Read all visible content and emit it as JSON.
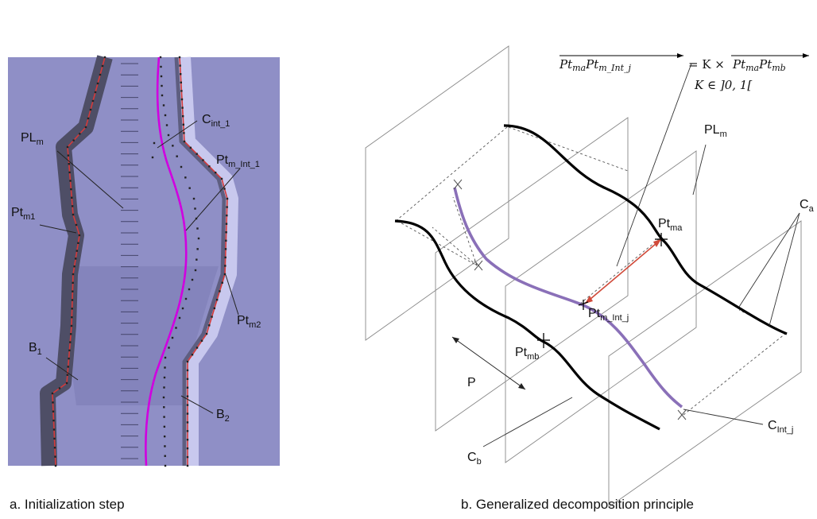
{
  "panel_a": {
    "caption": "a. Initialization step",
    "labels": {
      "c_int_1": {
        "main": "C",
        "sub": "int_1"
      },
      "pl_m": {
        "main": "PL",
        "sub": "m"
      },
      "pt_m_int_1": {
        "main": "Pt",
        "sub": "m_Int_1"
      },
      "pt_m1": {
        "main": "Pt",
        "sub": "m1"
      },
      "pt_m2": {
        "main": "Pt",
        "sub": "m2"
      },
      "b1": {
        "main": "B",
        "sub": "1"
      },
      "b2": {
        "main": "B",
        "sub": "2"
      }
    },
    "colors": {
      "background": "#8f8fc6",
      "shadow": "#4e4e66",
      "border_line": "#d43a3a",
      "curve": "#d000e0",
      "highlight": "#c8c8ee"
    }
  },
  "panel_b": {
    "caption": "b. Generalized decomposition principle",
    "equation": "Pt_ma Pt_m_Int_j = K × Pt_ma Pt_mb",
    "equation_lhs_1": "Pt",
    "equation_lhs_1_sub": "ma",
    "equation_lhs_2": "Pt",
    "equation_lhs_2_sub": "m_Int_j",
    "equation_op": "= K ×",
    "equation_rhs_1": "Pt",
    "equation_rhs_1_sub": "ma",
    "equation_rhs_2": "Pt",
    "equation_rhs_2_sub": "mb",
    "constraint": "K ∈ ]0, 1[",
    "labels": {
      "pl_m": {
        "main": "PL",
        "sub": "m"
      },
      "c_a": {
        "main": "C",
        "sub": "a"
      },
      "pt_ma": {
        "main": "Pt",
        "sub": "ma"
      },
      "pt_m_int_j": {
        "main": "Pt",
        "sub": "m_Int_j"
      },
      "pt_mb": {
        "main": "Pt",
        "sub": "mb"
      },
      "p": "P",
      "c_int_j": {
        "main": "C",
        "sub": "Int_j"
      },
      "c_b": {
        "main": "C",
        "sub": "b"
      }
    },
    "colors": {
      "curve": "#000000",
      "interpolated": "#8a70b8",
      "vector": "#d04a3a",
      "plane": "#777777"
    }
  }
}
